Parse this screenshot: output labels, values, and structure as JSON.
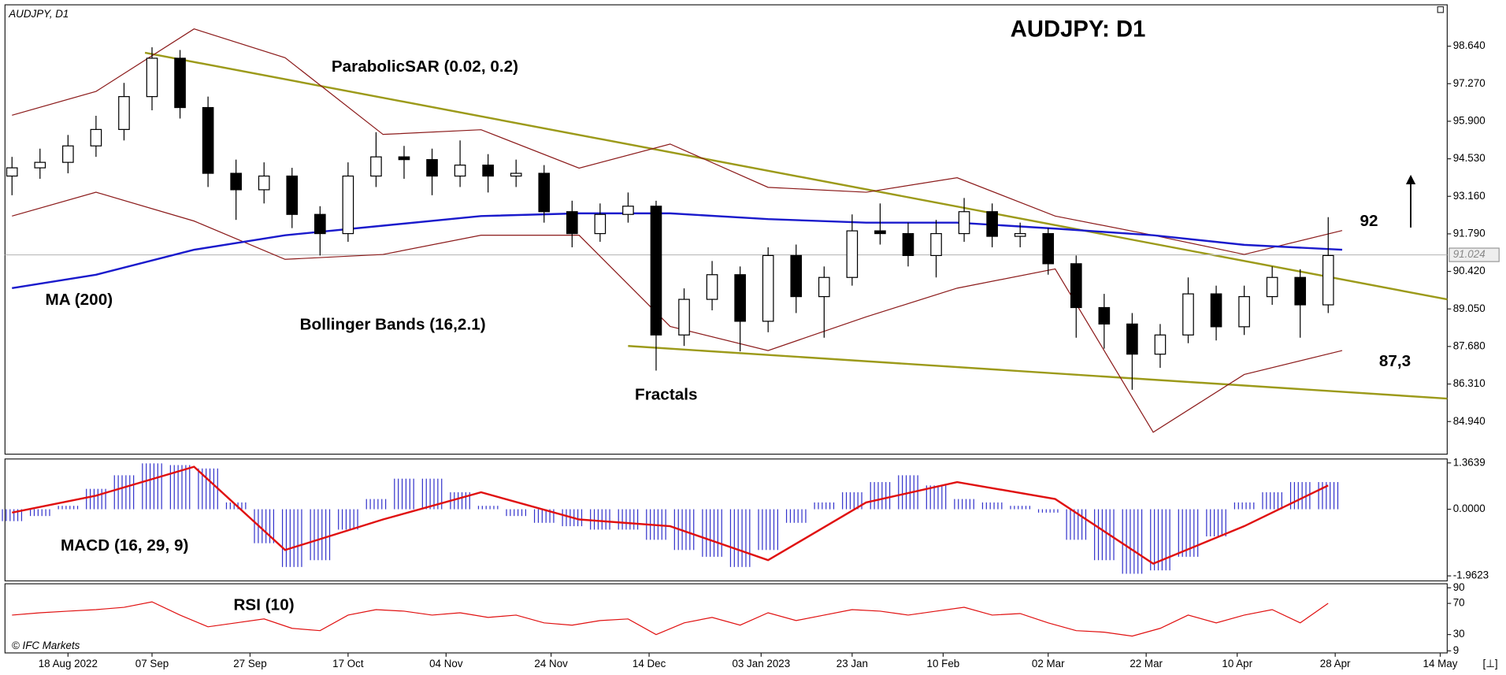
{
  "chart_data": [
    {
      "type": "candlestick",
      "title": "AUDJPY: D1",
      "symbol": "AUDJPY, D1",
      "copyright": "© IFC Markets",
      "x": [
        1,
        5,
        9,
        13,
        17,
        21,
        25,
        29,
        33,
        37,
        41,
        45,
        49,
        53,
        57,
        61,
        65,
        69,
        73,
        77,
        81,
        85,
        89,
        93,
        97,
        101,
        105,
        109,
        113,
        117,
        121,
        125,
        129,
        133,
        137,
        141,
        145,
        149,
        153,
        157,
        161,
        165,
        169,
        173,
        177,
        181,
        185,
        189
      ],
      "open": [
        93.9,
        94.2,
        94.4,
        95.0,
        95.6,
        96.8,
        98.2,
        96.4,
        94.0,
        93.4,
        93.9,
        92.5,
        91.8,
        93.9,
        94.6,
        94.5,
        93.9,
        94.3,
        93.9,
        94.0,
        92.6,
        91.8,
        92.5,
        92.8,
        88.1,
        89.4,
        90.3,
        88.6,
        91.0,
        89.5,
        90.2,
        91.9,
        91.8,
        91.0,
        91.8,
        92.6,
        91.7,
        91.8,
        90.7,
        89.1,
        88.5,
        87.4,
        88.1,
        89.6,
        88.4,
        89.5,
        90.2,
        89.2
      ],
      "high": [
        94.6,
        94.9,
        95.4,
        96.1,
        97.3,
        98.6,
        98.5,
        96.8,
        94.5,
        94.4,
        94.2,
        92.8,
        94.4,
        95.5,
        95.0,
        94.9,
        95.2,
        94.7,
        94.5,
        94.3,
        93.0,
        92.9,
        93.3,
        93.0,
        89.8,
        90.8,
        90.6,
        91.3,
        91.4,
        90.6,
        92.5,
        92.9,
        92.2,
        92.3,
        93.1,
        92.9,
        92.2,
        92.0,
        91.0,
        89.6,
        88.9,
        88.5,
        90.2,
        89.9,
        89.9,
        90.6,
        90.5,
        92.4
      ],
      "low": [
        93.2,
        93.8,
        94.0,
        94.6,
        95.2,
        96.3,
        96.0,
        93.5,
        92.3,
        92.9,
        92.0,
        91.0,
        91.5,
        93.5,
        93.8,
        93.2,
        93.5,
        93.3,
        93.5,
        92.2,
        91.3,
        91.5,
        92.2,
        86.8,
        87.7,
        89.0,
        87.5,
        88.2,
        88.9,
        88.0,
        89.9,
        91.4,
        90.6,
        90.2,
        91.5,
        91.3,
        91.3,
        90.3,
        88.0,
        87.6,
        86.1,
        86.9,
        87.8,
        87.9,
        88.1,
        89.2,
        88.0,
        88.9
      ],
      "close": [
        94.2,
        94.4,
        95.0,
        95.6,
        96.8,
        98.2,
        96.4,
        94.0,
        93.4,
        93.9,
        92.5,
        91.8,
        93.9,
        94.6,
        94.5,
        93.9,
        94.3,
        93.9,
        94.0,
        92.6,
        91.8,
        92.5,
        92.8,
        88.1,
        89.4,
        90.3,
        88.6,
        91.0,
        89.5,
        90.2,
        91.9,
        91.8,
        91.0,
        91.8,
        92.6,
        91.7,
        91.8,
        90.7,
        89.1,
        88.5,
        87.4,
        88.1,
        89.6,
        88.4,
        89.5,
        90.2,
        89.2,
        91.0
      ],
      "overlay_x": [
        1,
        13,
        27,
        40,
        54,
        68,
        82,
        95,
        109,
        123,
        136,
        150,
        164,
        177,
        191
      ],
      "moving_average": {
        "name": "MA (200)",
        "color": "#1a1acc",
        "values": [
          89.81,
          90.3,
          91.21,
          91.74,
          92.09,
          92.44,
          92.54,
          92.54,
          92.33,
          92.2,
          92.2,
          91.98,
          91.74,
          91.39,
          91.21
        ]
      },
      "bollinger": {
        "name": "Bollinger Bands (16,2.1)",
        "color": "#8b1a1a",
        "upper": [
          96.12,
          96.99,
          99.27,
          98.22,
          95.42,
          95.59,
          94.19,
          95.07,
          93.49,
          93.31,
          93.84,
          92.44,
          91.74,
          91.04,
          91.91
        ],
        "lower": [
          92.44,
          93.31,
          92.26,
          90.86,
          91.04,
          91.74,
          91.74,
          88.41,
          87.53,
          88.76,
          89.81,
          90.51,
          84.55,
          86.66,
          87.53
        ]
      },
      "trendlines": [
        {
          "x": [
            20,
            206
          ],
          "values": [
            98.4,
            89.4
          ]
        },
        {
          "x": [
            89,
            206
          ],
          "values": [
            87.7,
            85.78
          ]
        }
      ],
      "trendline_color": "#9c9a1a",
      "last_price": 91.024,
      "annotations": [
        {
          "text": "ParabolicSAR (0.02, 0.2)"
        },
        {
          "text": "MA (200)"
        },
        {
          "text": "Bollinger Bands (16,2.1)"
        },
        {
          "text": "Fractals"
        },
        {
          "text": "92"
        },
        {
          "text": "87,3"
        }
      ],
      "xlim": [
        0,
        206
      ],
      "xticks": [
        {
          "value": 9,
          "label": "18 Aug 2022"
        },
        {
          "value": 21,
          "label": "07 Sep"
        },
        {
          "value": 35,
          "label": "27 Sep"
        },
        {
          "value": 49,
          "label": "17 Oct"
        },
        {
          "value": 63,
          "label": "04 Nov"
        },
        {
          "value": 78,
          "label": "24 Nov"
        },
        {
          "value": 92,
          "label": "14 Dec"
        },
        {
          "value": 108,
          "label": "03 Jan 2023"
        },
        {
          "value": 121,
          "label": "23 Jan"
        },
        {
          "value": 134,
          "label": "10 Feb"
        },
        {
          "value": 149,
          "label": "02 Mar"
        },
        {
          "value": 163,
          "label": "22 Mar"
        },
        {
          "value": 176,
          "label": "10 Apr"
        },
        {
          "value": 190,
          "label": "28 Apr"
        },
        {
          "value": 205,
          "label": "14 May"
        }
      ],
      "ylim": [
        83.75,
        100.15
      ],
      "yticks": [
        {
          "value": 98.64,
          "label": "98.640"
        },
        {
          "value": 97.27,
          "label": "97.270"
        },
        {
          "value": 95.9,
          "label": "95.900"
        },
        {
          "value": 94.53,
          "label": "94.530"
        },
        {
          "value": 93.16,
          "label": "93.160"
        },
        {
          "value": 91.79,
          "label": "91.790"
        },
        {
          "value": 90.42,
          "label": "90.420"
        },
        {
          "value": 89.05,
          "label": "89.050"
        },
        {
          "value": 87.68,
          "label": "87.680"
        },
        {
          "value": 86.31,
          "label": "86.310"
        },
        {
          "value": 84.94,
          "label": "84.940"
        }
      ]
    },
    {
      "type": "macd",
      "label": "MACD (16, 29, 9)",
      "x": [
        1,
        5,
        9,
        13,
        17,
        21,
        25,
        29,
        33,
        37,
        41,
        45,
        49,
        53,
        57,
        61,
        65,
        69,
        73,
        77,
        81,
        85,
        89,
        93,
        97,
        101,
        105,
        109,
        113,
        117,
        121,
        125,
        129,
        133,
        137,
        141,
        145,
        149,
        153,
        157,
        161,
        165,
        169,
        173,
        177,
        181,
        185,
        189
      ],
      "values": [
        -0.35,
        -0.2,
        0.1,
        0.6,
        1.0,
        1.35,
        1.3,
        1.2,
        0.2,
        -1.0,
        -1.7,
        -1.5,
        -0.6,
        0.3,
        0.9,
        0.9,
        0.5,
        0.1,
        -0.2,
        -0.4,
        -0.5,
        -0.6,
        -0.6,
        -0.9,
        -1.2,
        -1.4,
        -1.7,
        -1.2,
        -0.4,
        0.2,
        0.5,
        0.8,
        1.0,
        0.7,
        0.3,
        0.2,
        0.1,
        -0.1,
        -0.9,
        -1.5,
        -1.9,
        -1.8,
        -1.4,
        -0.8,
        0.2,
        0.5,
        0.8,
        0.8
      ],
      "color": "#3333cc",
      "signal": {
        "x": [
          1,
          13,
          27,
          40,
          54,
          68,
          82,
          95,
          109,
          123,
          136,
          150,
          164,
          177,
          189
        ],
        "values": [
          -0.1,
          0.4,
          1.25,
          -1.2,
          -0.3,
          0.5,
          -0.3,
          -0.5,
          -1.5,
          0.2,
          0.8,
          0.3,
          -1.6,
          -0.5,
          0.7
        ],
        "color": "#e01010"
      },
      "ylim": [
        -2.11,
        1.48
      ],
      "yticks": [
        1.3639,
        {
          "value": 0,
          "label": "0.0000"
        },
        -1.9623
      ]
    },
    {
      "type": "line",
      "label": "RSI (10)",
      "x": [
        1,
        5,
        9,
        13,
        17,
        21,
        25,
        29,
        33,
        37,
        41,
        45,
        49,
        53,
        57,
        61,
        65,
        69,
        73,
        77,
        81,
        85,
        89,
        93,
        97,
        101,
        105,
        109,
        113,
        117,
        121,
        125,
        129,
        133,
        137,
        141,
        145,
        149,
        153,
        157,
        161,
        165,
        169,
        173,
        177,
        181,
        185,
        189
      ],
      "values": [
        55,
        58,
        60,
        62,
        65,
        72,
        55,
        40,
        45,
        50,
        38,
        35,
        55,
        62,
        60,
        55,
        58,
        52,
        55,
        45,
        42,
        48,
        50,
        30,
        45,
        52,
        42,
        58,
        48,
        55,
        62,
        60,
        55,
        60,
        65,
        55,
        57,
        45,
        35,
        33,
        28,
        38,
        55,
        45,
        55,
        62,
        45,
        70
      ],
      "color": "#e01010",
      "ylim": [
        6.4,
        95.2
      ],
      "yticks": [
        90,
        70,
        30,
        9
      ]
    }
  ]
}
